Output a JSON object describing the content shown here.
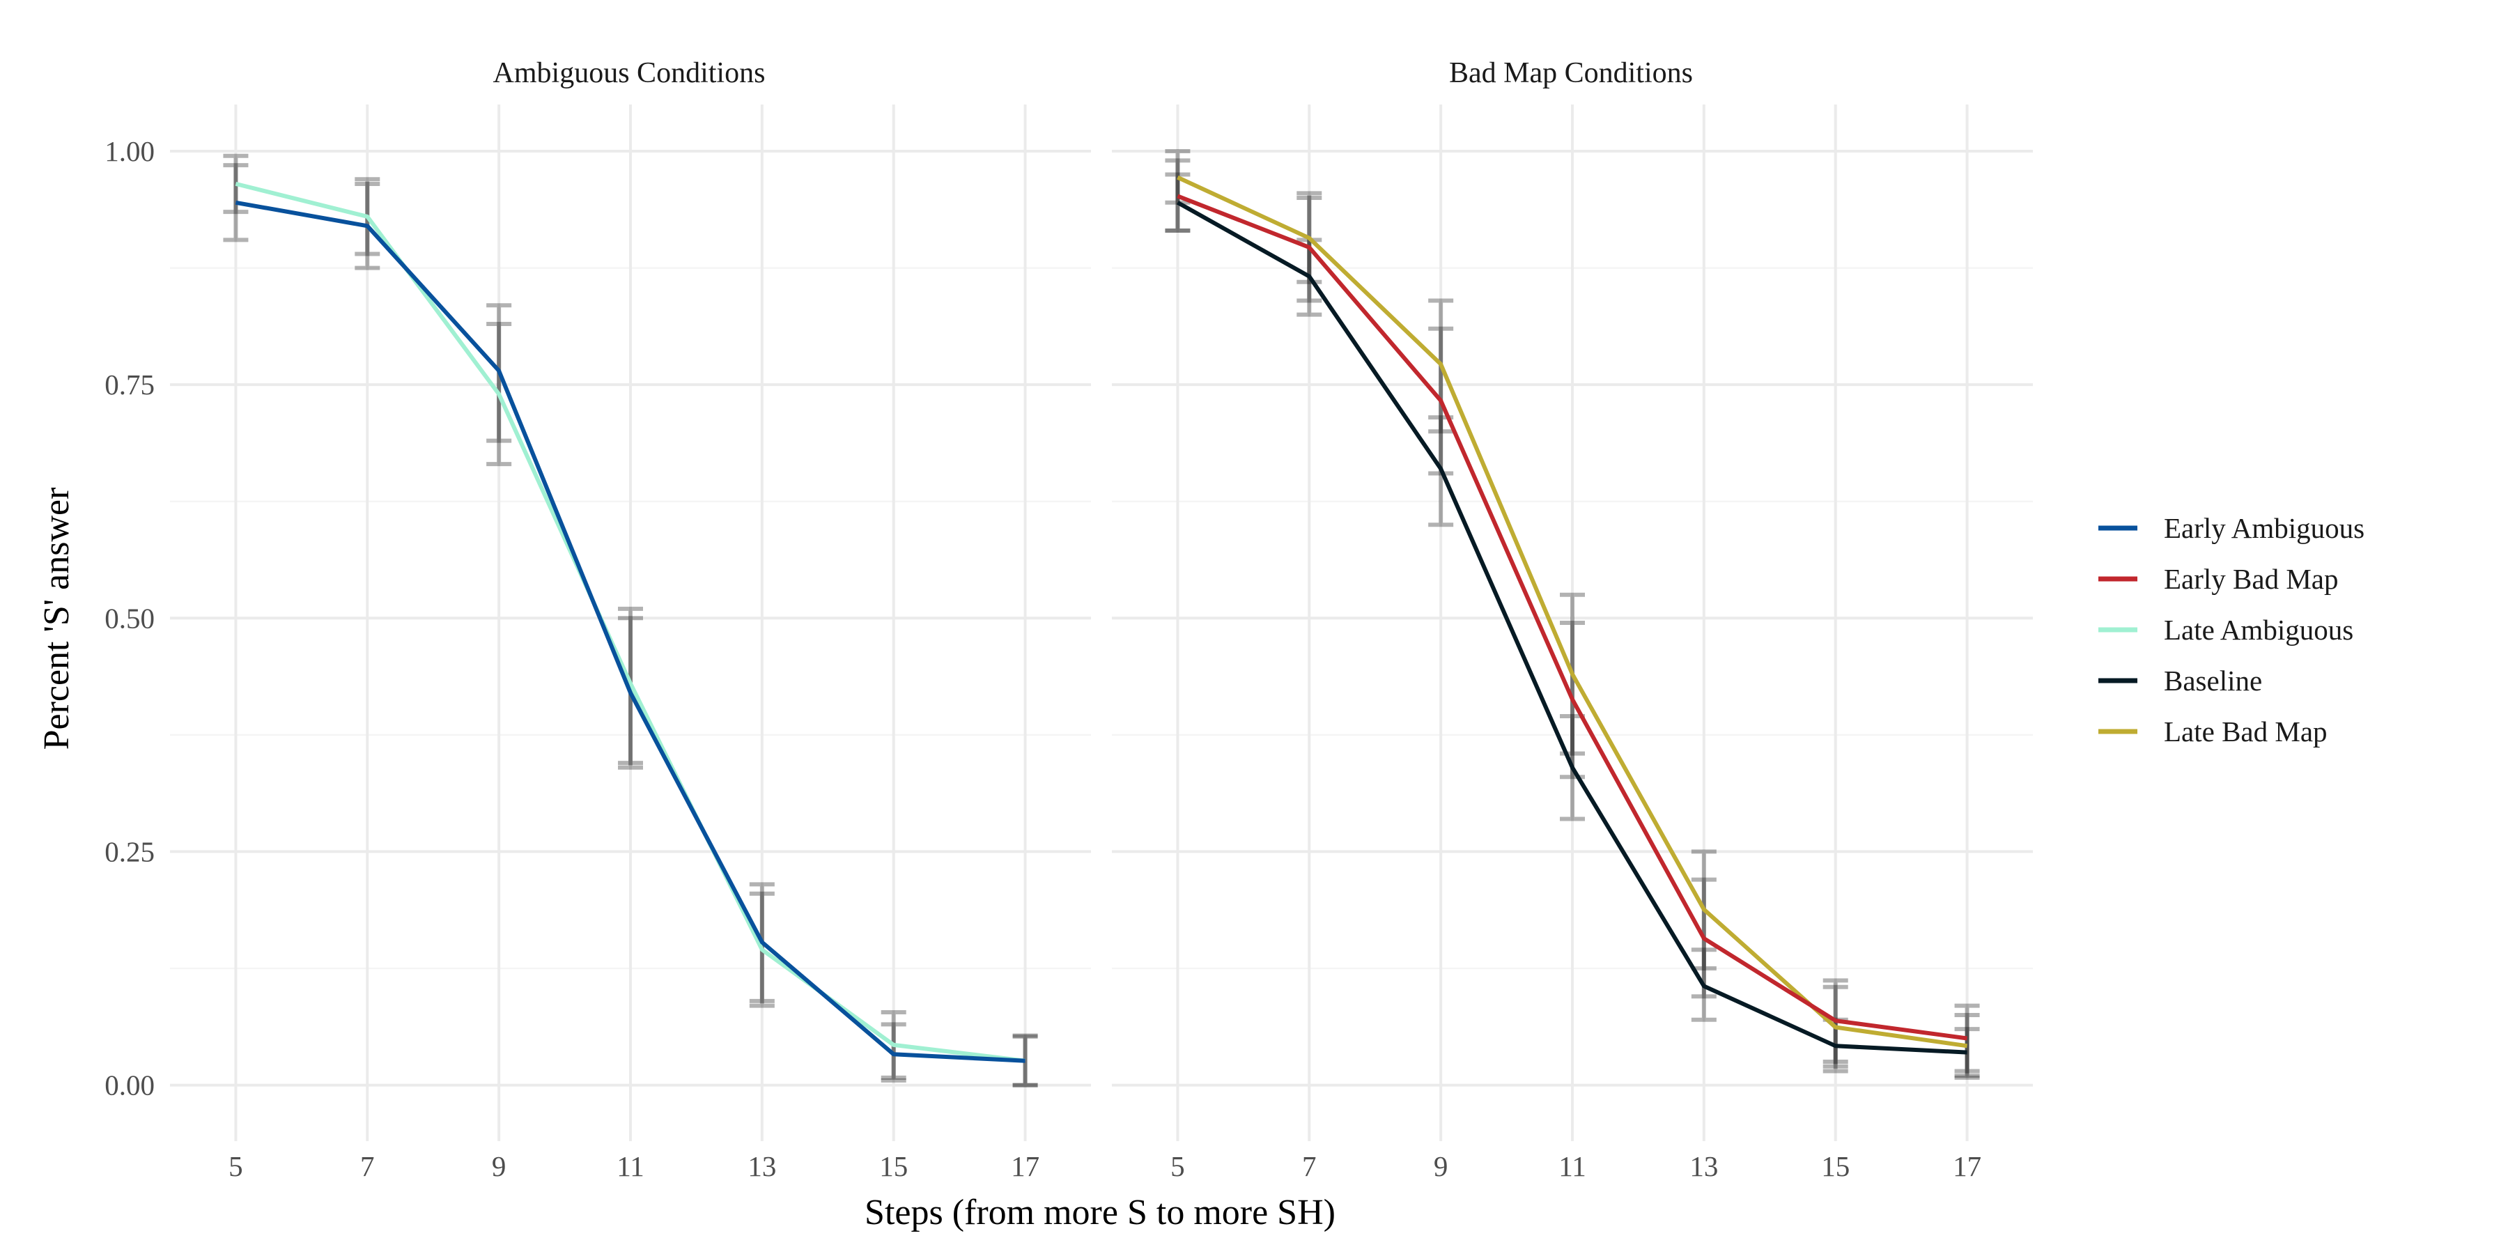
{
  "chart_data": {
    "type": "line",
    "xlabel": "Steps (from more S to more SH)",
    "ylabel": "Percent 'S' answer",
    "x": [
      5,
      7,
      9,
      11,
      13,
      15,
      17
    ],
    "ylim": [
      -0.06,
      1.05
    ],
    "y_ticks": [
      0.0,
      0.25,
      0.5,
      0.75,
      1.0
    ],
    "y_tick_labels": [
      "0.00",
      "0.25",
      "0.50",
      "0.75",
      "1.00"
    ],
    "x_tick_labels": [
      "5",
      "7",
      "9",
      "11",
      "13",
      "15",
      "17"
    ],
    "grid": true,
    "legend_position": "right",
    "legend": [
      {
        "name": "Early Ambiguous",
        "color": "#08519c"
      },
      {
        "name": "Early Bad Map",
        "color": "#c1272d"
      },
      {
        "name": "Late Ambiguous",
        "color": "#a0f0d2"
      },
      {
        "name": "Baseline",
        "color": "#061a24"
      },
      {
        "name": "Late Bad Map",
        "color": "#bfac32"
      }
    ],
    "error_bar_color": "#000000",
    "panels": [
      {
        "title": "Ambiguous Conditions",
        "series": [
          {
            "name": "Late Ambiguous",
            "color": "#a0f0d2",
            "values": [
              0.965,
              0.93,
              0.74,
              0.43,
              0.145,
              0.043,
              0.026
            ],
            "lower": [
              0.935,
              0.89,
              0.665,
              0.345,
              0.085,
              0.008,
              0.0
            ],
            "upper": [
              0.995,
              0.97,
              0.815,
              0.51,
              0.205,
              0.078,
              0.053
            ]
          },
          {
            "name": "Early Ambiguous",
            "color": "#08519c",
            "values": [
              0.945,
              0.92,
              0.765,
              0.42,
              0.153,
              0.033,
              0.026
            ],
            "lower": [
              0.905,
              0.875,
              0.69,
              0.34,
              0.09,
              0.005,
              0.0
            ],
            "upper": [
              0.985,
              0.965,
              0.835,
              0.5,
              0.215,
              0.065,
              0.052
            ]
          }
        ]
      },
      {
        "title": "Bad Map Conditions",
        "series": [
          {
            "name": "Late Bad Map",
            "color": "#bfac32",
            "values": [
              0.972,
              0.907,
              0.772,
              0.44,
              0.188,
              0.062,
              0.042
            ],
            "lower": [
              0.945,
              0.86,
              0.7,
              0.355,
              0.125,
              0.02,
              0.01
            ],
            "upper": [
              1.0,
              0.955,
              0.84,
              0.525,
              0.25,
              0.105,
              0.075
            ]
          },
          {
            "name": "Early Bad Map",
            "color": "#c1272d",
            "values": [
              0.952,
              0.897,
              0.733,
              0.413,
              0.157,
              0.069,
              0.05
            ],
            "lower": [
              0.915,
              0.84,
              0.655,
              0.33,
              0.095,
              0.025,
              0.015
            ],
            "upper": [
              0.99,
              0.95,
              0.81,
              0.495,
              0.22,
              0.112,
              0.085
            ]
          },
          {
            "name": "Baseline",
            "color": "#061a24",
            "values": [
              0.945,
              0.866,
              0.66,
              0.34,
              0.106,
              0.042,
              0.035
            ],
            "lower": [
              0.915,
              0.825,
              0.6,
              0.285,
              0.07,
              0.015,
              0.008
            ],
            "upper": [
              0.975,
              0.905,
              0.715,
              0.395,
              0.145,
              0.07,
              0.06
            ]
          }
        ]
      }
    ]
  }
}
